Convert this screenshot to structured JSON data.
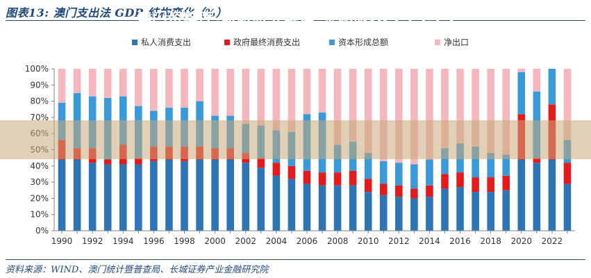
{
  "title": "图表13:  澳门支出法 GDP 结构变化（%）",
  "source": "资料来源：WIND、澳门统计暨普查局、长城证券产业金融研究院",
  "watermark": "澳门资料库,最新研究解读_亲和版GCF13.73",
  "colors": {
    "private": "#2e75b6",
    "government": "#e41a1c",
    "capital": "#3a9ad9",
    "net_export": "#f4b7bd"
  },
  "chart_data": {
    "type": "bar",
    "stacked": true,
    "categories": [
      "1990",
      "1991",
      "1992",
      "1993",
      "1994",
      "1995",
      "1996",
      "1997",
      "1998",
      "1999",
      "2000",
      "2001",
      "2002",
      "2003",
      "2004",
      "2005",
      "2006",
      "2007",
      "2008",
      "2009",
      "2010",
      "2011",
      "2012",
      "2013",
      "2014",
      "2015",
      "2016",
      "2017",
      "2018",
      "2019",
      "2020",
      "2021",
      "2022",
      "2023"
    ],
    "tick_labels": [
      "1990",
      "1992",
      "1994",
      "1996",
      "1998",
      "2000",
      "2002",
      "2004",
      "2006",
      "2008",
      "2010",
      "2012",
      "2014",
      "2016",
      "2018",
      "2020",
      "2022"
    ],
    "series": [
      {
        "name": "私人消费支出",
        "values": [
          44,
          44,
          42,
          41,
          41,
          41,
          43,
          44,
          43,
          44,
          44,
          44,
          42,
          39,
          34,
          32,
          29,
          28,
          28,
          28,
          24,
          22,
          21,
          20,
          21,
          26,
          27,
          24,
          24,
          25,
          44,
          42,
          44,
          29
        ]
      },
      {
        "name": "政府最终消费支出",
        "values": [
          12,
          7,
          9,
          3,
          12,
          4,
          9,
          8,
          9,
          8,
          7,
          7,
          6,
          6,
          8,
          8,
          8,
          8,
          8,
          9,
          8,
          7,
          7,
          6,
          7,
          9,
          9,
          9,
          9,
          9,
          28,
          3,
          34,
          13
        ]
      },
      {
        "name": "资本形成总额",
        "values": [
          23,
          34,
          32,
          38,
          30,
          32,
          22,
          24,
          24,
          28,
          20,
          20,
          18,
          20,
          20,
          21,
          35,
          37,
          17,
          18,
          16,
          14,
          14,
          15,
          16,
          16,
          18,
          19,
          15,
          13,
          26,
          41,
          22,
          14
        ]
      },
      {
        "name": "净出口",
        "values": [
          21,
          15,
          17,
          18,
          17,
          23,
          26,
          24,
          24,
          20,
          29,
          29,
          34,
          35,
          38,
          39,
          28,
          27,
          47,
          45,
          52,
          57,
          58,
          59,
          56,
          49,
          46,
          48,
          52,
          53,
          2,
          14,
          0,
          44
        ]
      }
    ],
    "ylim": [
      0,
      100
    ],
    "yticks": [
      "0%",
      "10%",
      "20%",
      "30%",
      "40%",
      "50%",
      "60%",
      "70%",
      "80%",
      "90%",
      "100%"
    ],
    "legend_position": "top",
    "grid": false
  }
}
